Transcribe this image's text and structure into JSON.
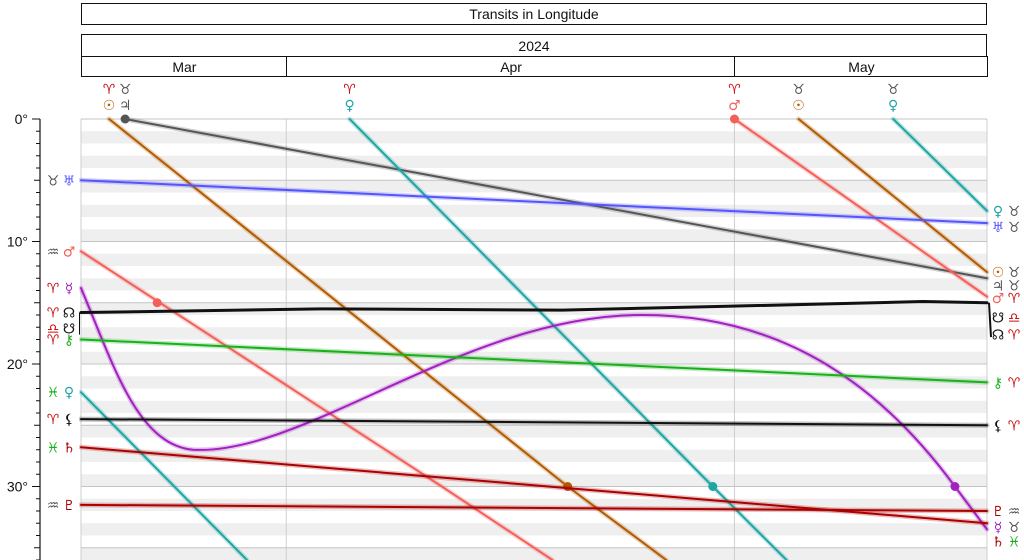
{
  "title": "Transits in Longitude",
  "year": "2024",
  "months": [
    {
      "label": "Mar",
      "start": 0,
      "end": 25.6
    },
    {
      "label": "Apr",
      "start": 25.6,
      "end": 81.5
    },
    {
      "label": "May",
      "start": 81.5,
      "end": 113
    }
  ],
  "chart_data": {
    "type": "line",
    "title": "Transits in Longitude",
    "xlabel": "",
    "ylabel": "",
    "x_unit": "days from left edge of 2024 timeline",
    "xlim": [
      0,
      113
    ],
    "ylim": [
      0,
      36
    ],
    "y_ticks": [
      "0°",
      "10°",
      "20°",
      "30°"
    ],
    "series": [
      {
        "name": "Jupiter",
        "glyph": "♃",
        "sign": "♉",
        "color": "#555555",
        "points": [
          [
            5.5,
            0
          ],
          [
            113,
            13
          ]
        ],
        "marker": [
          5.5,
          0
        ]
      },
      {
        "name": "Sun",
        "glyph": "☉",
        "sign": "♈",
        "color": "#b25a00",
        "points": [
          [
            3.5,
            0
          ],
          [
            60.7,
            30
          ],
          [
            73,
            36
          ]
        ],
        "marker": [
          60.7,
          30
        ]
      },
      {
        "name": "Sun",
        "glyph": "☉",
        "sign": "♉",
        "color": "#b25a00",
        "points": [
          [
            89.5,
            0
          ],
          [
            113,
            12.5
          ]
        ],
        "marker": null
      },
      {
        "name": "Venus",
        "glyph": "♀",
        "sign": "♈",
        "color": "#20a5a5",
        "points": [
          [
            33.5,
            0
          ],
          [
            78.8,
            30
          ],
          [
            88,
            36
          ]
        ],
        "marker": [
          78.8,
          30
        ]
      },
      {
        "name": "Venus",
        "glyph": "♀",
        "sign": "♉",
        "color": "#20a5a5",
        "points": [
          [
            101.3,
            0
          ],
          [
            113,
            7.5
          ]
        ],
        "marker": null
      },
      {
        "name": "Venus",
        "glyph": "♀",
        "sign": "♓",
        "color": "#20a5a5",
        "points": [
          [
            0,
            22.3
          ],
          [
            20.7,
            36
          ]
        ],
        "marker": null
      },
      {
        "name": "Mars",
        "glyph": "♂",
        "sign": "♒",
        "color": "#f2605a",
        "points": [
          [
            0,
            10.8
          ],
          [
            45,
            30
          ],
          [
            58.8,
            36
          ]
        ],
        "marker": [
          9.5,
          15
        ]
      },
      {
        "name": "Mars",
        "glyph": "♂",
        "sign": "♈",
        "color": "#f2605a",
        "points": [
          [
            81.5,
            0
          ],
          [
            113,
            14.5
          ]
        ],
        "marker": [
          81.5,
          0
        ]
      },
      {
        "name": "Uranus",
        "glyph": "♅",
        "sign": "♉",
        "color": "#5555ff",
        "points": [
          [
            0,
            5
          ],
          [
            113,
            8.5
          ]
        ],
        "marker": null
      },
      {
        "name": "Mercury",
        "glyph": "☿",
        "sign": "♈",
        "color": "#a020c0",
        "curve": "mercury",
        "points": [
          [
            0,
            13.8
          ],
          [
            14,
            27
          ],
          [
            70,
            16
          ],
          [
            109,
            30
          ],
          [
            113,
            33.5
          ]
        ],
        "marker": [
          109,
          30
        ]
      },
      {
        "name": "True Node",
        "glyph": "☊",
        "sign": "♈",
        "color": "#111111",
        "thick": true,
        "points": [
          [
            0,
            15.8
          ],
          [
            30,
            15.5
          ],
          [
            60,
            15.6
          ],
          [
            80,
            15.3
          ],
          [
            105,
            14.9
          ],
          [
            113,
            15
          ]
        ],
        "marker": null
      },
      {
        "name": "Chiron",
        "glyph": "⚷",
        "sign": "♈",
        "color": "#1bb01b",
        "points": [
          [
            0,
            18
          ],
          [
            113,
            21.5
          ]
        ],
        "marker": null
      },
      {
        "name": "Lilith",
        "glyph": "⚸",
        "sign": "♈",
        "color": "#111111",
        "points": [
          [
            0,
            24.5
          ],
          [
            113,
            25
          ]
        ],
        "marker": null
      },
      {
        "name": "Saturn",
        "glyph": "♄",
        "sign": "♓",
        "color": "#aa0000",
        "points": [
          [
            0,
            26.8
          ],
          [
            113,
            33
          ]
        ],
        "marker": null
      },
      {
        "name": "Pluto",
        "glyph": "♇",
        "sign": "♒",
        "color": "#aa0000",
        "points": [
          [
            0,
            31.5
          ],
          [
            113,
            32
          ]
        ],
        "marker": null
      }
    ],
    "labels_top": [
      {
        "x": 3.5,
        "sign": "♈",
        "glyph": "☉",
        "color": "#b25a00",
        "sign_color": "#cc1111"
      },
      {
        "x": 5.5,
        "sign": "♉",
        "glyph": "♃",
        "color": "#555555",
        "sign_color": "#555555"
      },
      {
        "x": 33.5,
        "sign": "♈",
        "glyph": "♀",
        "color": "#20a5a5",
        "sign_color": "#cc1111"
      },
      {
        "x": 81.5,
        "sign": "♈",
        "glyph": "♂",
        "color": "#f2605a",
        "sign_color": "#cc1111"
      },
      {
        "x": 89.5,
        "sign": "♉",
        "glyph": "☉",
        "color": "#b25a00",
        "sign_color": "#555555"
      },
      {
        "x": 101.3,
        "sign": "♉",
        "glyph": "♀",
        "color": "#20a5a5",
        "sign_color": "#555555"
      }
    ],
    "labels_left": [
      {
        "y": 5,
        "sign": "♉",
        "glyph": "♅",
        "color": "#5555ff",
        "sign_color": "#555555"
      },
      {
        "y": 10.8,
        "sign": "♒",
        "glyph": "♂",
        "color": "#f2605a",
        "sign_color": "#555555"
      },
      {
        "y": 13.8,
        "sign": "♈",
        "glyph": "☿",
        "color": "#a020c0",
        "sign_color": "#cc1111"
      },
      {
        "y": 15.8,
        "sign": "♈",
        "glyph": "☊",
        "color": "#111111",
        "sign_color": "#cc1111"
      },
      {
        "y": 17.1,
        "sign": "♎",
        "glyph": "☋",
        "color": "#111111",
        "sign_color": "#cc1111"
      },
      {
        "y": 18,
        "sign": "♈",
        "glyph": "⚷",
        "color": "#1bb01b",
        "sign_color": "#cc1111"
      },
      {
        "y": 22.3,
        "sign": "♓",
        "glyph": "♀",
        "color": "#20a5a5",
        "sign_color": "#1bb01b"
      },
      {
        "y": 24.5,
        "sign": "♈",
        "glyph": "⚸",
        "color": "#111111",
        "sign_color": "#cc1111"
      },
      {
        "y": 26.8,
        "sign": "♓",
        "glyph": "♄",
        "color": "#aa0000",
        "sign_color": "#1bb01b"
      },
      {
        "y": 31.5,
        "sign": "♒",
        "glyph": "♇",
        "color": "#aa0000",
        "sign_color": "#555555"
      }
    ],
    "labels_right": [
      {
        "y": 7.5,
        "glyph": "♀",
        "sign": "♉",
        "color": "#20a5a5",
        "sign_color": "#555555"
      },
      {
        "y": 8.8,
        "glyph": "♅",
        "sign": "♉",
        "color": "#5555ff",
        "sign_color": "#555555"
      },
      {
        "y": 12.5,
        "glyph": "☉",
        "sign": "♉",
        "color": "#b25a00",
        "sign_color": "#555555"
      },
      {
        "y": 13.6,
        "glyph": "♃",
        "sign": "♉",
        "color": "#555555",
        "sign_color": "#555555"
      },
      {
        "y": 14.6,
        "glyph": "♂",
        "sign": "♈",
        "color": "#f2605a",
        "sign_color": "#cc1111"
      },
      {
        "y": 16.2,
        "glyph": "☋",
        "sign": "♎",
        "color": "#111111",
        "sign_color": "#cc1111"
      },
      {
        "y": 17.6,
        "glyph": "☊",
        "sign": "♈",
        "color": "#111111",
        "sign_color": "#cc1111"
      },
      {
        "y": 21.5,
        "glyph": "⚷",
        "sign": "♈",
        "color": "#1bb01b",
        "sign_color": "#cc1111"
      },
      {
        "y": 25,
        "glyph": "⚸",
        "sign": "♈",
        "color": "#111111",
        "sign_color": "#cc1111"
      },
      {
        "y": 32,
        "glyph": "♇",
        "sign": "♒",
        "color": "#aa0000",
        "sign_color": "#555555"
      },
      {
        "y": 33.3,
        "glyph": "☿",
        "sign": "♉",
        "color": "#a020c0",
        "sign_color": "#555555"
      },
      {
        "y": 34.5,
        "glyph": "♄",
        "sign": "♓",
        "color": "#aa0000",
        "sign_color": "#1bb01b"
      }
    ]
  }
}
